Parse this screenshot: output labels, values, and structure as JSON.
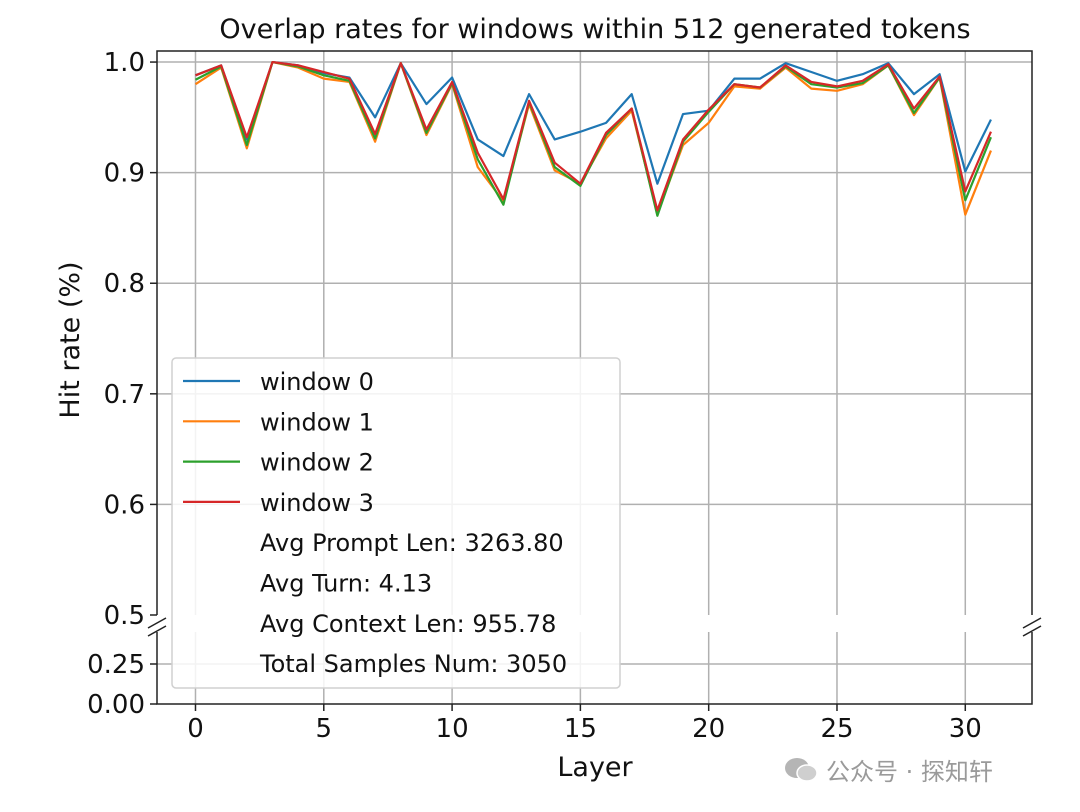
{
  "chart_data": {
    "type": "line",
    "title": "Overlap rates for windows within 512 generated tokens",
    "xlabel": "Layer",
    "ylabel": "Hit rate (%)",
    "x": [
      0,
      1,
      2,
      3,
      4,
      5,
      6,
      7,
      8,
      9,
      10,
      11,
      12,
      13,
      14,
      15,
      16,
      17,
      18,
      19,
      20,
      21,
      22,
      23,
      24,
      25,
      26,
      27,
      28,
      29,
      30,
      31
    ],
    "xlim": [
      -1.5,
      32.6
    ],
    "xticks": [
      "0",
      "5",
      "10",
      "15",
      "20",
      "25",
      "30"
    ],
    "ylim_upper": [
      0.5,
      1.01
    ],
    "ylim_lower": [
      0.0,
      0.45
    ],
    "yticks_upper": [
      "0.5",
      "0.6",
      "0.7",
      "0.8",
      "0.9",
      "1.0"
    ],
    "yticks_lower": [
      "0.00",
      "0.25"
    ],
    "grid": true,
    "broken_axis": true,
    "legend_position": "lower-left",
    "series": [
      {
        "name": "window 0",
        "color": "#1f77b4",
        "values": [
          0.988,
          0.997,
          0.93,
          1.0,
          0.997,
          0.99,
          0.986,
          0.95,
          0.999,
          0.962,
          0.986,
          0.93,
          0.915,
          0.971,
          0.93,
          0.937,
          0.945,
          0.971,
          0.89,
          0.953,
          0.956,
          0.985,
          0.985,
          0.999,
          0.991,
          0.983,
          0.989,
          0.999,
          0.971,
          0.989,
          0.901,
          0.948
        ]
      },
      {
        "name": "window 1",
        "color": "#ff7f0e",
        "values": [
          0.98,
          0.995,
          0.922,
          1.0,
          0.995,
          0.985,
          0.982,
          0.928,
          0.999,
          0.934,
          0.98,
          0.905,
          0.874,
          0.962,
          0.902,
          0.89,
          0.931,
          0.956,
          0.863,
          0.925,
          0.945,
          0.978,
          0.976,
          0.995,
          0.976,
          0.974,
          0.98,
          0.997,
          0.952,
          0.986,
          0.862,
          0.92
        ]
      },
      {
        "name": "window 2",
        "color": "#2ca02c",
        "values": [
          0.984,
          0.996,
          0.925,
          1.0,
          0.996,
          0.988,
          0.983,
          0.931,
          0.999,
          0.936,
          0.981,
          0.912,
          0.871,
          0.964,
          0.905,
          0.888,
          0.934,
          0.958,
          0.861,
          0.928,
          0.955,
          0.98,
          0.977,
          0.996,
          0.98,
          0.977,
          0.981,
          0.997,
          0.954,
          0.986,
          0.875,
          0.932
        ]
      },
      {
        "name": "window 3",
        "color": "#d62728",
        "values": [
          0.988,
          0.997,
          0.932,
          1.0,
          0.997,
          0.991,
          0.985,
          0.935,
          0.999,
          0.939,
          0.982,
          0.918,
          0.876,
          0.965,
          0.909,
          0.89,
          0.936,
          0.958,
          0.866,
          0.93,
          0.957,
          0.98,
          0.977,
          0.997,
          0.982,
          0.978,
          0.983,
          0.998,
          0.958,
          0.987,
          0.883,
          0.937
        ]
      }
    ],
    "annotations": [
      "Avg Prompt Len: 3263.80",
      "Avg Turn: 4.13",
      "Avg Context Len: 955.78",
      "Total Samples Num: 3050"
    ]
  },
  "watermark": "公众号 · 探知轩"
}
